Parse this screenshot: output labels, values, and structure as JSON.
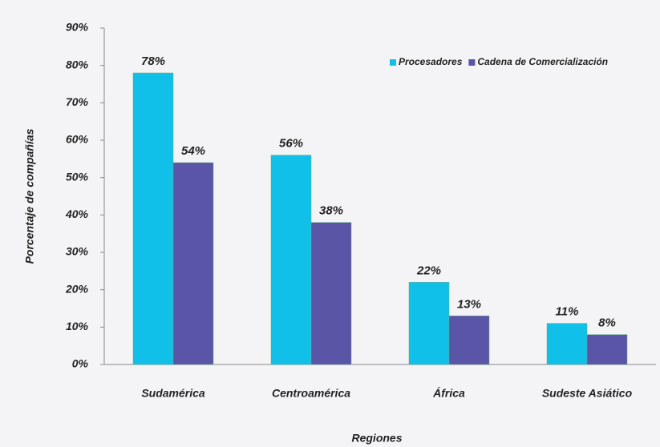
{
  "chart_data": {
    "type": "bar",
    "x_label": "Regiones",
    "y_label": "Porcentaje de compañías",
    "categories": [
      "Sudamérica",
      "Centroamérica",
      "África",
      "Sudeste Asiático"
    ],
    "series": [
      {
        "name": "Procesadores",
        "color": "#10c0e8",
        "values": [
          78,
          56,
          22,
          11
        ],
        "value_labels": [
          "78%",
          "56%",
          "22%",
          "11%"
        ]
      },
      {
        "name": "Cadena de Comercialización",
        "color": "#5a55a6",
        "values": [
          54,
          38,
          13,
          8
        ],
        "value_labels": [
          "54%",
          "38%",
          "13%",
          "8%"
        ]
      }
    ],
    "ylim": [
      0,
      90
    ],
    "yticks": [
      {
        "value": 0,
        "label": "0%"
      },
      {
        "value": 10,
        "label": "10%"
      },
      {
        "value": 20,
        "label": "20%"
      },
      {
        "value": 30,
        "label": "30%"
      },
      {
        "value": 40,
        "label": "40%"
      },
      {
        "value": 50,
        "label": "50%"
      },
      {
        "value": 60,
        "label": "60%"
      },
      {
        "value": 70,
        "label": "70%"
      },
      {
        "value": 80,
        "label": "80%"
      },
      {
        "value": 90,
        "label": "90%"
      }
    ],
    "legend": "top-right"
  }
}
